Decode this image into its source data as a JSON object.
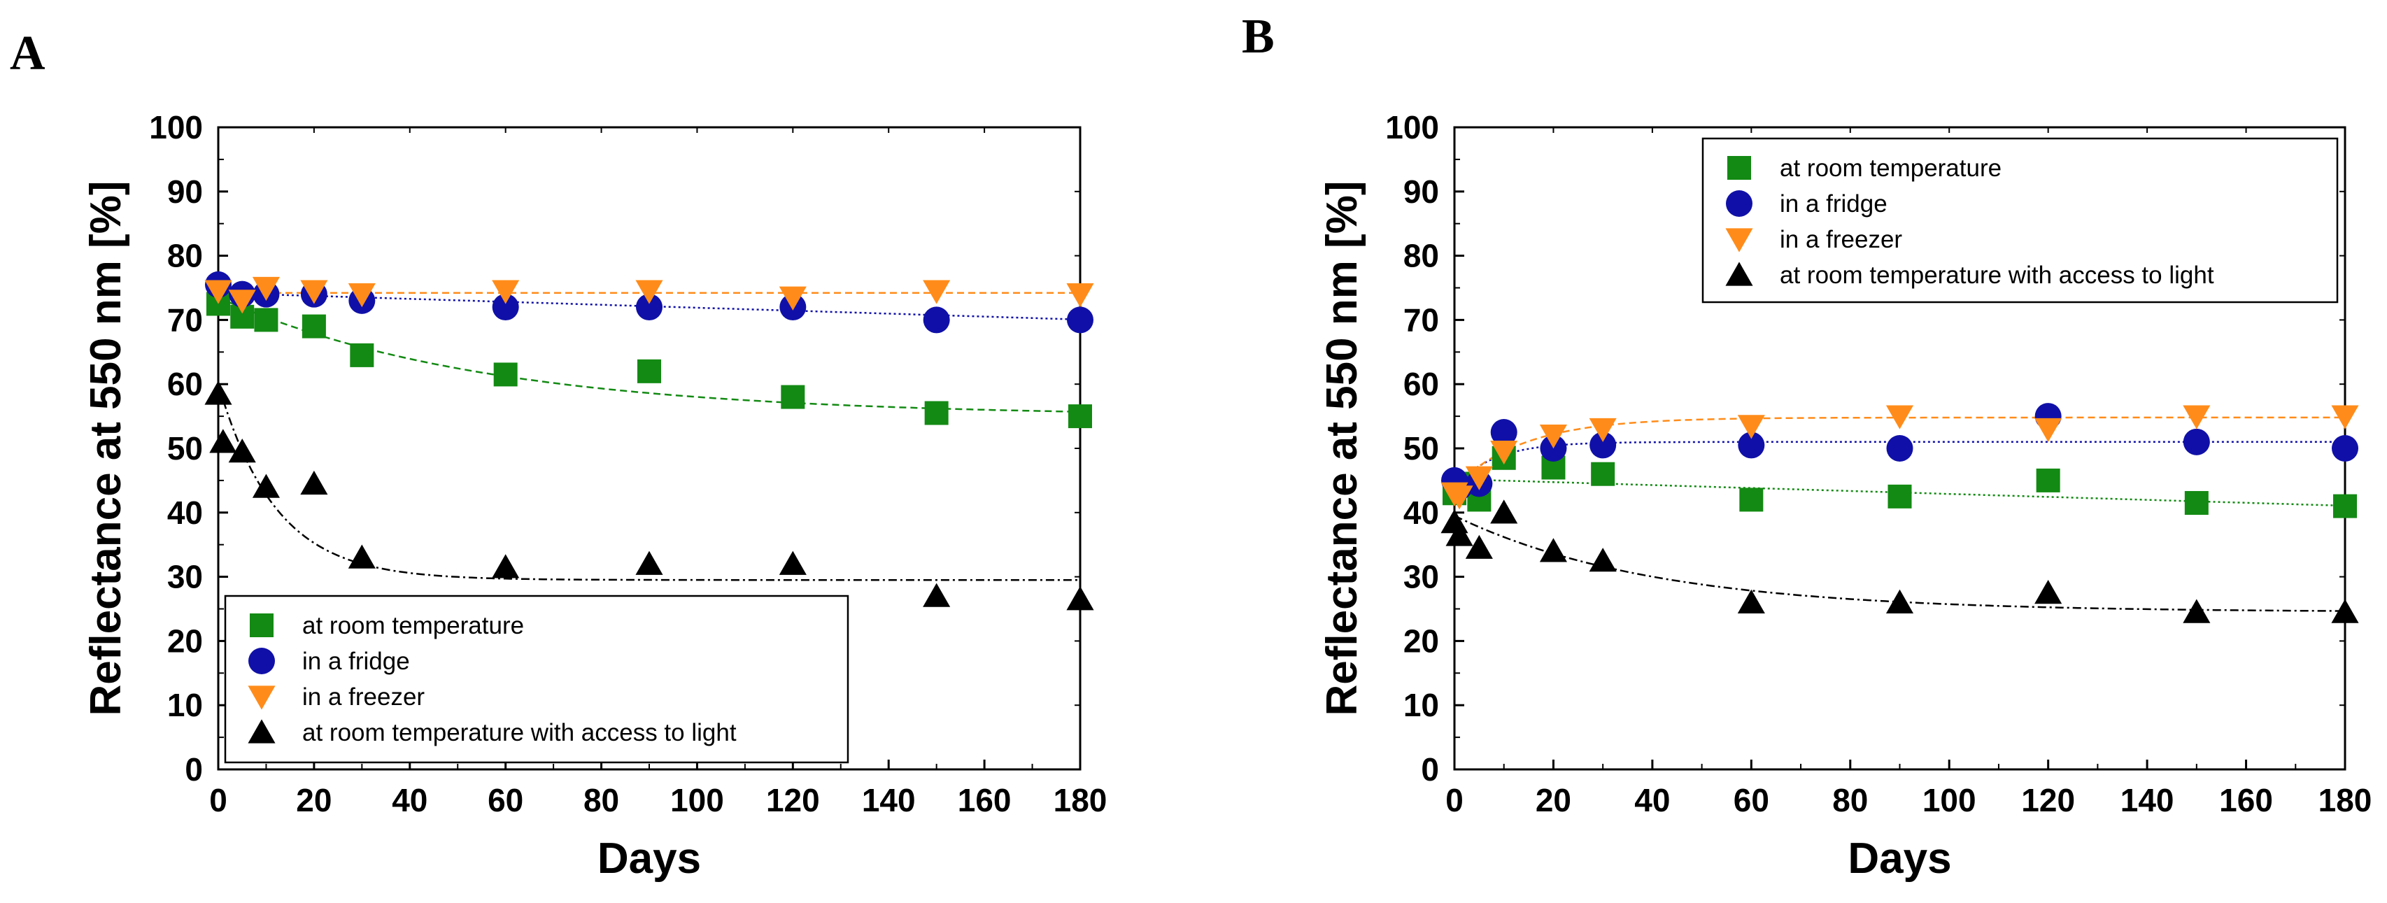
{
  "panels": [
    {
      "letter": "A"
    },
    {
      "letter": "B"
    }
  ],
  "chart_data": [
    {
      "type": "scatter",
      "panel": "A",
      "xlabel": "Days",
      "ylabel": "Reflectance at 550 nm [%]",
      "xlim": [
        0,
        180
      ],
      "ylim": [
        0,
        100
      ],
      "xticks": [
        0,
        20,
        40,
        60,
        80,
        100,
        120,
        140,
        160,
        180
      ],
      "yticks": [
        0,
        10,
        20,
        30,
        40,
        50,
        60,
        70,
        80,
        90,
        100
      ],
      "grid": false,
      "legend_position": "bottom-left",
      "series": [
        {
          "name": "at room temperature",
          "marker": "square",
          "color": "#138a13",
          "x": [
            0,
            5,
            10,
            20,
            30,
            60,
            90,
            120,
            150,
            180
          ],
          "y": [
            72.5,
            70.5,
            70,
            69,
            64.5,
            61.5,
            62,
            58,
            55.5,
            55
          ],
          "fit": {
            "kind": "exp_decay",
            "y0": 55,
            "A": 18.5,
            "t": 55,
            "style": "dashed"
          }
        },
        {
          "name": "in a fridge",
          "marker": "circle",
          "color": "#1010a8",
          "x": [
            0,
            5,
            10,
            20,
            30,
            60,
            90,
            120,
            150,
            180
          ],
          "y": [
            75.5,
            74,
            74,
            74,
            73,
            72,
            72,
            72,
            70,
            70
          ],
          "fit": {
            "kind": "linear",
            "a": 74.2,
            "b": -0.023,
            "style": "dotted"
          }
        },
        {
          "name": "in a freezer",
          "marker": "triangle-down",
          "color": "#ff8c1a",
          "x": [
            0,
            5,
            10,
            20,
            30,
            60,
            90,
            120,
            150,
            180
          ],
          "y": [
            74.5,
            73,
            75,
            74.5,
            74,
            74.5,
            74.5,
            73.5,
            74.5,
            74
          ],
          "fit": {
            "kind": "linear",
            "a": 74.2,
            "b": 0,
            "style": "dashed"
          }
        },
        {
          "name": "at room temperature with access to light",
          "marker": "triangle-up",
          "color": "#000000",
          "x": [
            0,
            1,
            5,
            10,
            20,
            30,
            60,
            90,
            120,
            150,
            180
          ],
          "y": [
            58.5,
            51,
            49.5,
            44,
            44.5,
            33,
            31.5,
            32,
            32,
            27,
            26.5
          ],
          "fit": {
            "kind": "exp_decay",
            "y0": 29.5,
            "A": 30.5,
            "t": 12,
            "style": "dashdot"
          }
        }
      ]
    },
    {
      "type": "scatter",
      "panel": "B",
      "xlabel": "Days",
      "ylabel": "Reflectance at 550 nm [%]",
      "xlim": [
        0,
        180
      ],
      "ylim": [
        0,
        100
      ],
      "xticks": [
        0,
        20,
        40,
        60,
        80,
        100,
        120,
        140,
        160,
        180
      ],
      "yticks": [
        0,
        10,
        20,
        30,
        40,
        50,
        60,
        70,
        80,
        90,
        100
      ],
      "grid": false,
      "legend_position": "top-right",
      "series": [
        {
          "name": "at room temperature",
          "marker": "square",
          "color": "#138a13",
          "x": [
            0,
            1,
            5,
            10,
            20,
            30,
            60,
            90,
            120,
            150,
            180
          ],
          "y": [
            43,
            44.5,
            42,
            48.5,
            47,
            46,
            42,
            42.5,
            45,
            41.5,
            41
          ],
          "fit": {
            "kind": "linear",
            "a": 45.2,
            "b": -0.023,
            "style": "dotted"
          }
        },
        {
          "name": "in a fridge",
          "marker": "circle",
          "color": "#1010a8",
          "x": [
            0,
            1,
            5,
            10,
            20,
            30,
            60,
            90,
            120,
            150,
            180
          ],
          "y": [
            45,
            44,
            44.5,
            52.5,
            50,
            50.5,
            50.5,
            50,
            55,
            51,
            50
          ],
          "fit": {
            "kind": "exp_rise",
            "y0": 51,
            "A": 7,
            "t": 8,
            "style": "dotted"
          }
        },
        {
          "name": "in a freezer",
          "marker": "triangle-down",
          "color": "#ff8c1a",
          "x": [
            0,
            1,
            5,
            10,
            20,
            30,
            60,
            90,
            120,
            150,
            180
          ],
          "y": [
            43,
            42.5,
            45.5,
            49.5,
            52,
            53,
            53.5,
            55,
            53,
            55,
            55
          ],
          "fit": {
            "kind": "exp_rise",
            "y0": 54.8,
            "A": 10.8,
            "t": 14,
            "style": "dashed"
          }
        },
        {
          "name": "at room temperature with access to light",
          "marker": "triangle-up",
          "color": "#000000",
          "x": [
            0,
            1,
            5,
            10,
            20,
            30,
            60,
            90,
            120,
            150,
            180
          ],
          "y": [
            38.5,
            36.5,
            34.5,
            40,
            34,
            32.5,
            26,
            26,
            27.5,
            24.5,
            24.5
          ],
          "fit": {
            "kind": "exp_decay",
            "y0": 24.5,
            "A": 15,
            "t": 40,
            "style": "dashdot"
          }
        }
      ]
    }
  ]
}
